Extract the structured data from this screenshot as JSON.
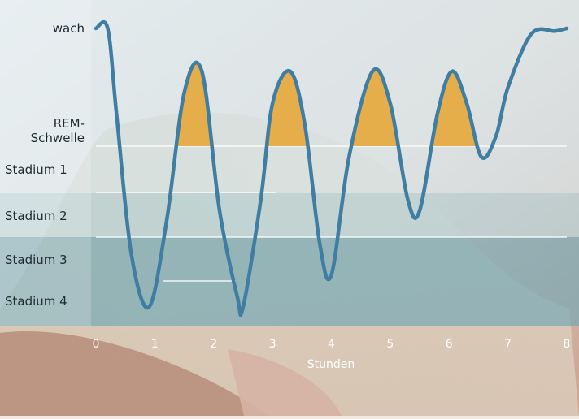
{
  "chart_data": {
    "type": "line",
    "xlabel": "Stunden",
    "x_ticks": [
      "0",
      "1",
      "2",
      "3",
      "4",
      "5",
      "6",
      "7",
      "8"
    ],
    "xlim": [
      0,
      8
    ],
    "y_levels": [
      {
        "key": "wach",
        "label": "wach"
      },
      {
        "key": "rem",
        "label": "REM-\nSchwelle"
      },
      {
        "key": "s1",
        "label": "Stadium 1"
      },
      {
        "key": "s2",
        "label": "Stadium 2"
      },
      {
        "key": "s3",
        "label": "Stadium 3"
      },
      {
        "key": "s4",
        "label": "Stadium 4"
      }
    ],
    "ylim_note": "wach at top, Stadium 4 at bottom",
    "series": [
      {
        "x": [
          0.0,
          0.2,
          0.35,
          0.6,
          0.9,
          1.2,
          1.5,
          1.8,
          2.1,
          2.4,
          2.5,
          2.8,
          3.0,
          3.3,
          3.55,
          3.8,
          4.0,
          4.3,
          4.7,
          5.0,
          5.3,
          5.5,
          5.8,
          6.05,
          6.3,
          6.55,
          6.8,
          7.0,
          7.4,
          7.8,
          8.0
        ],
        "y": [
          0.0,
          0.0,
          1.6,
          4.2,
          5.2,
          3.6,
          1.2,
          0.8,
          3.4,
          5.0,
          5.2,
          3.2,
          1.4,
          0.8,
          1.8,
          4.0,
          4.6,
          2.4,
          0.8,
          1.4,
          3.2,
          3.4,
          1.6,
          0.8,
          1.4,
          2.4,
          2.0,
          1.1,
          0.1,
          0.05,
          0.0
        ]
      }
    ],
    "highlight": "REM phases above REM-Schwelle",
    "colors": {
      "line": "#3f7da3",
      "rem_fill": "#e6a93d",
      "panel_light": "#d7ecf3",
      "panel_mid": "#b2d6e0",
      "panel_dark": "#6aa7b6"
    }
  }
}
